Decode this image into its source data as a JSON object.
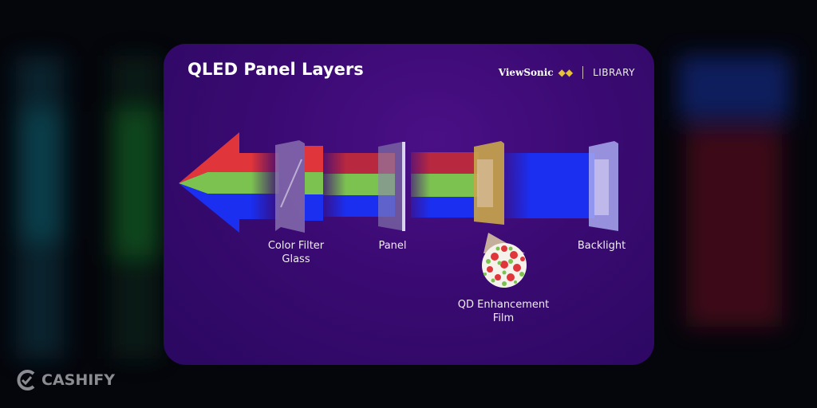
{
  "title": "QLED Panel Layers",
  "brand": {
    "name": "ViewSonic",
    "section": "LIBRARY"
  },
  "labels": {
    "color_filter_line1": "Color Filter",
    "color_filter_line2": "Glass",
    "panel": "Panel",
    "qd_line1": "QD Enhancement",
    "qd_line2": "Film",
    "backlight": "Backlight"
  },
  "colors": {
    "red": "#e0353a",
    "green": "#7cc250",
    "blue": "#1a2ff0",
    "qd_film": "#c9a64a",
    "card": "#3a0a72"
  },
  "watermark": "CASHIFY"
}
